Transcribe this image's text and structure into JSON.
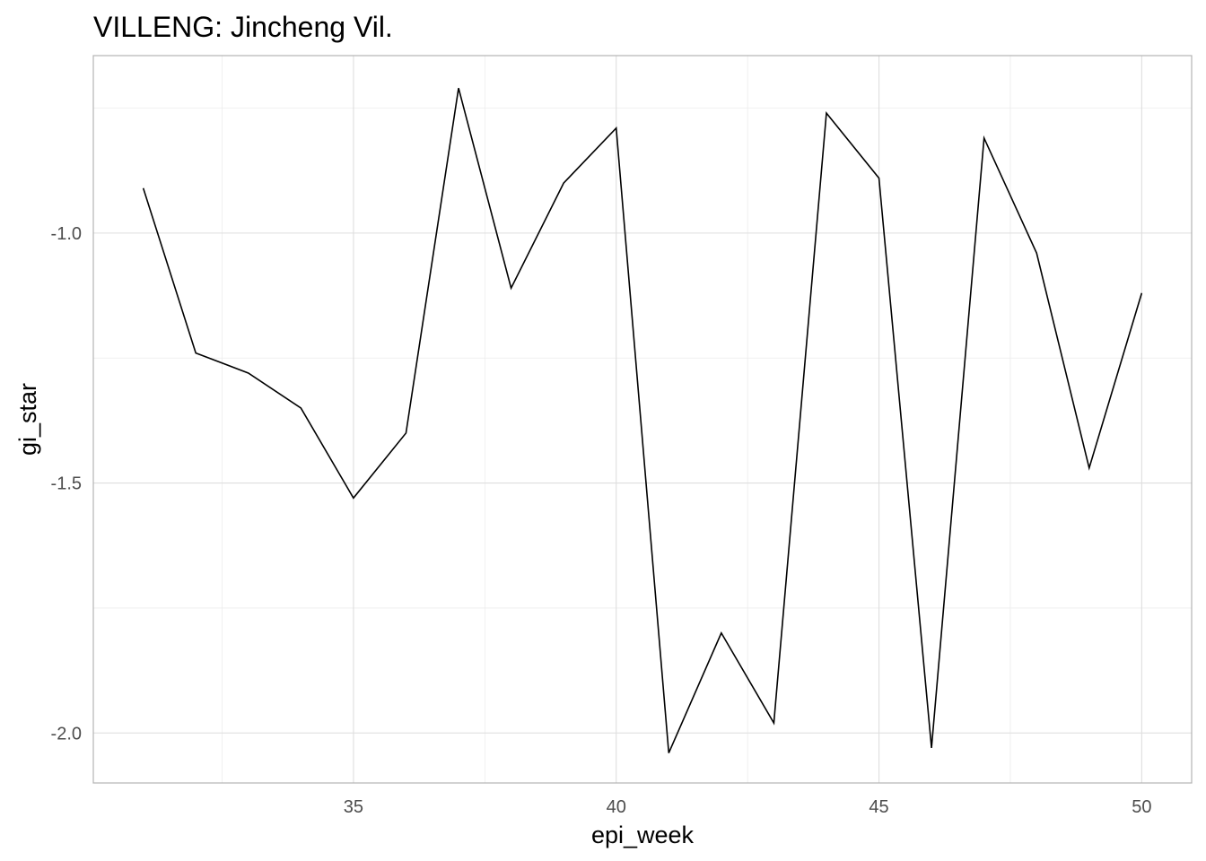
{
  "chart_data": {
    "type": "line",
    "title": "VILLENG: Jincheng Vil.",
    "xlabel": "epi_week",
    "ylabel": "gi_star",
    "x": [
      31,
      32,
      33,
      34,
      35,
      36,
      37,
      38,
      39,
      40,
      41,
      42,
      43,
      44,
      45,
      46,
      47,
      48,
      49,
      50
    ],
    "series": [
      {
        "values": [
          -0.91,
          -1.24,
          -1.28,
          -1.35,
          -1.53,
          -1.4,
          -0.71,
          -1.11,
          -0.9,
          -0.79,
          -2.04,
          -1.8,
          -1.98,
          -0.76,
          -0.89,
          -2.03,
          -0.81,
          -1.04,
          -1.47,
          -1.12
        ]
      }
    ],
    "xlim": [
      30.05,
      50.95
    ],
    "ylim": [
      -2.1,
      -0.645
    ],
    "x_ticks": [
      35,
      40,
      45,
      50
    ],
    "x_tick_labels": [
      "35",
      "40",
      "45",
      "50"
    ],
    "x_minor_ticks": [
      32.5,
      37.5,
      42.5,
      47.5
    ],
    "y_ticks": [
      -1.0,
      -1.5,
      -2.0
    ],
    "y_tick_labels": [
      "-1.0",
      "-1.5",
      "-2.0"
    ],
    "y_minor_ticks": [
      -0.75,
      -1.25,
      -1.75
    ],
    "grid": true,
    "legend": "none",
    "line_color": "#000000"
  }
}
